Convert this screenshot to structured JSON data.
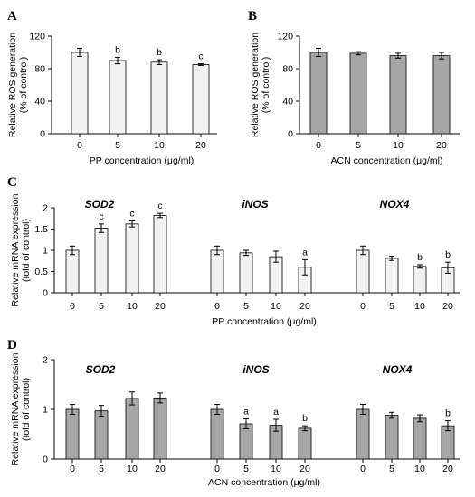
{
  "chart_data": [
    {
      "panel": "A",
      "type": "bar",
      "categories": [
        "0",
        "5",
        "10",
        "20"
      ],
      "values": [
        100,
        90,
        88,
        85
      ],
      "errors": [
        5,
        4,
        3,
        1
      ],
      "labels": [
        "",
        "b",
        "b",
        "c"
      ],
      "color": "#f2f2f2",
      "xlabel": "PP concentration (μg/ml)",
      "ylabel": [
        "Relative ROS generation",
        "(% of control)"
      ],
      "ylim": [
        0,
        120
      ],
      "yticks": [
        "0",
        "40",
        "80",
        "120"
      ]
    },
    {
      "panel": "B",
      "type": "bar",
      "categories": [
        "0",
        "5",
        "10",
        "20"
      ],
      "values": [
        100,
        99,
        96,
        96
      ],
      "errors": [
        5,
        2,
        3,
        4
      ],
      "labels": [
        "",
        "",
        "",
        ""
      ],
      "color": "#a6a6a6",
      "xlabel": "ACN concentration (μg/ml)",
      "ylabel": [
        "Relative ROS generation",
        "(% of control)"
      ],
      "ylim": [
        0,
        120
      ],
      "yticks": [
        "0",
        "40",
        "80",
        "120"
      ]
    },
    {
      "panel": "C",
      "type": "bar",
      "groups": [
        {
          "name": "SOD2",
          "categories": [
            "0",
            "5",
            "10",
            "20"
          ],
          "values": [
            1.0,
            1.52,
            1.62,
            1.82
          ],
          "errors": [
            0.1,
            0.1,
            0.07,
            0.05
          ],
          "labels": [
            "",
            "c",
            "c",
            "c"
          ]
        },
        {
          "name": "iNOS",
          "categories": [
            "0",
            "5",
            "10",
            "20"
          ],
          "values": [
            1.0,
            0.94,
            0.85,
            0.6
          ],
          "errors": [
            0.1,
            0.06,
            0.13,
            0.18
          ],
          "labels": [
            "",
            "",
            "",
            "a"
          ]
        },
        {
          "name": "NOX4",
          "categories": [
            "0",
            "5",
            "10",
            "20"
          ],
          "values": [
            1.0,
            0.81,
            0.62,
            0.59
          ],
          "errors": [
            0.1,
            0.05,
            0.04,
            0.13
          ],
          "labels": [
            "",
            "",
            "b",
            "b"
          ]
        }
      ],
      "color": "#f2f2f2",
      "xlabel": "PP concentration (μg/ml)",
      "ylabel": [
        "Relative mRNA expression",
        "(fold of control)"
      ],
      "ylim": [
        0,
        2
      ],
      "yticks": [
        "0",
        "0.5",
        "1",
        "1.5",
        "2"
      ]
    },
    {
      "panel": "D",
      "type": "bar",
      "groups": [
        {
          "name": "SOD2",
          "categories": [
            "0",
            "5",
            "10",
            "20"
          ],
          "values": [
            1.0,
            0.97,
            1.22,
            1.23
          ],
          "errors": [
            0.1,
            0.11,
            0.13,
            0.1
          ],
          "labels": [
            "",
            "",
            "",
            ""
          ]
        },
        {
          "name": "iNOS",
          "categories": [
            "0",
            "5",
            "10",
            "20"
          ],
          "values": [
            1.0,
            0.71,
            0.68,
            0.62
          ],
          "errors": [
            0.1,
            0.1,
            0.12,
            0.05
          ],
          "labels": [
            "",
            "a",
            "a",
            "b"
          ]
        },
        {
          "name": "NOX4",
          "categories": [
            "0",
            "5",
            "10",
            "20"
          ],
          "values": [
            1.0,
            0.88,
            0.82,
            0.67
          ],
          "errors": [
            0.1,
            0.06,
            0.07,
            0.1
          ],
          "labels": [
            "",
            "",
            "",
            "b"
          ]
        }
      ],
      "color": "#a6a6a6",
      "xlabel": "ACN concentration (μg/ml)",
      "ylabel": [
        "Relative mRNA expression",
        "(fold of control)"
      ],
      "ylim": [
        0,
        2
      ],
      "yticks": [
        "0",
        "1",
        "2"
      ]
    }
  ]
}
